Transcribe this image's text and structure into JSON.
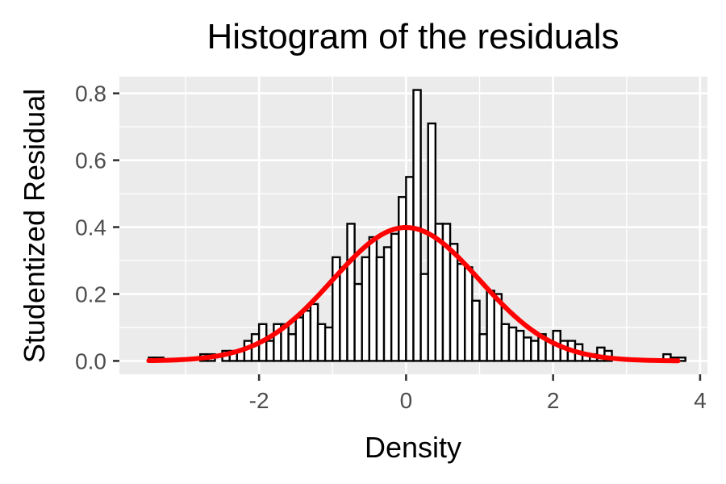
{
  "chart_data": {
    "type": "histogram",
    "title": "Histogram of the residuals",
    "xlabel": "Density",
    "ylabel": "Studentized Residual",
    "xlim": [
      -3.9,
      4.1
    ],
    "ylim": [
      -0.04,
      0.85
    ],
    "x_ticks": [
      -2,
      0,
      2,
      4
    ],
    "y_ticks": [
      0.0,
      0.2,
      0.4,
      0.6,
      0.8
    ],
    "x_tick_labels": [
      "-2",
      "0",
      "2",
      "4"
    ],
    "y_tick_labels": [
      "0.0",
      "0.2",
      "0.4",
      "0.6",
      "0.8"
    ],
    "grid": true,
    "legend": "none",
    "bin_width": 0.1,
    "bins_x": [
      -3.5,
      -3.4,
      -2.8,
      -2.7,
      -2.5,
      -2.4,
      -2.3,
      -2.2,
      -2.1,
      -2.0,
      -1.9,
      -1.8,
      -1.7,
      -1.6,
      -1.5,
      -1.4,
      -1.3,
      -1.2,
      -1.1,
      -1.0,
      -0.9,
      -0.8,
      -0.7,
      -0.6,
      -0.5,
      -0.4,
      -0.3,
      -0.2,
      -0.1,
      0.0,
      0.1,
      0.2,
      0.3,
      0.4,
      0.5,
      0.6,
      0.7,
      0.8,
      0.9,
      1.0,
      1.1,
      1.2,
      1.3,
      1.4,
      1.5,
      1.6,
      1.7,
      1.8,
      1.9,
      2.0,
      2.1,
      2.2,
      2.3,
      2.4,
      2.5,
      2.6,
      2.7,
      3.5,
      3.6,
      3.7
    ],
    "bins_density": [
      0.01,
      0.01,
      0.02,
      0.02,
      0.03,
      0.03,
      0.03,
      0.06,
      0.08,
      0.11,
      0.06,
      0.11,
      0.11,
      0.08,
      0.13,
      0.15,
      0.17,
      0.11,
      0.1,
      0.31,
      0.28,
      0.41,
      0.23,
      0.31,
      0.37,
      0.31,
      0.34,
      0.38,
      0.49,
      0.55,
      0.81,
      0.26,
      0.71,
      0.41,
      0.41,
      0.35,
      0.29,
      0.28,
      0.18,
      0.08,
      0.21,
      0.2,
      0.11,
      0.1,
      0.09,
      0.07,
      0.06,
      0.08,
      0.06,
      0.09,
      0.06,
      0.06,
      0.05,
      0.02,
      0.02,
      0.04,
      0.03,
      0.02,
      0.01,
      0.01
    ],
    "normal_curve": {
      "mean": 0,
      "sd": 1,
      "x_range": [
        -3.5,
        3.7
      ],
      "color": "#ff0000"
    },
    "colors": {
      "panel_background": "#ebebeb",
      "grid": "#ffffff",
      "bar_fill": "#ffffff",
      "bar_outline": "#000000",
      "curve": "#ff0000"
    }
  }
}
